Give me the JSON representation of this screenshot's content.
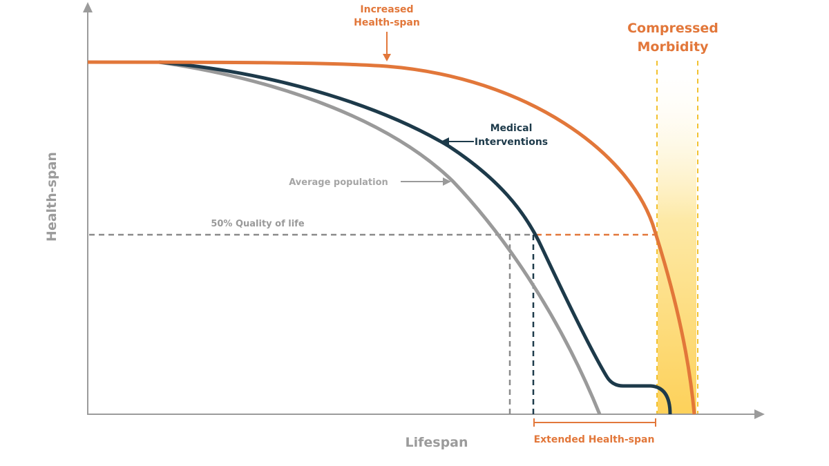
{
  "axes": {
    "x_label": "Lifespan",
    "y_label": "Health-span"
  },
  "labels": {
    "increased_line1": "Increased",
    "increased_line2": "Health-span",
    "compressed_line1": "Compressed",
    "compressed_line2": "Morbidity",
    "medical_line1": "Medical",
    "medical_line2": "Interventions",
    "average_population": "Average population",
    "quality_of_life": "50% Quality of life",
    "extended_healthspan": "Extended Health-span"
  },
  "colors": {
    "orange": "#e2773a",
    "navy": "#1d3a4a",
    "gray": "#9a9a9a",
    "axis": "#9b9b9b",
    "band_yellow": "#fdd15a",
    "band_dash": "#f2c12e"
  }
}
